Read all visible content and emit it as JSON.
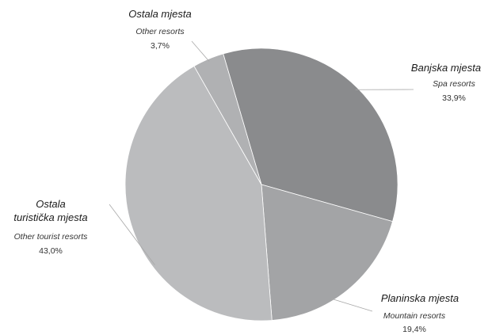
{
  "chart_data": {
    "type": "pie",
    "title": "",
    "start_angle_deg": -16.3,
    "direction": "clockwise",
    "slices": [
      {
        "label": "Banjska mjesta",
        "label_en": "Spa resorts",
        "value": 33.9,
        "value_label": "33,9%",
        "color": "#8a8b8d"
      },
      {
        "label": "Planinska mjesta",
        "label_en": "Mountain resorts",
        "value": 19.4,
        "value_label": "19,4%",
        "color": "#a3a4a6"
      },
      {
        "label_lines": [
          "Ostala",
          "turistička mjesta"
        ],
        "label_en": "Other tourist resorts",
        "value": 43.0,
        "value_label": "43,0%",
        "color": "#bbbcbe"
      },
      {
        "label": "Ostala mjesta",
        "label_en": "Other resorts",
        "value": 3.7,
        "value_label": "3,7%",
        "color": "#b0b1b3"
      }
    ]
  }
}
